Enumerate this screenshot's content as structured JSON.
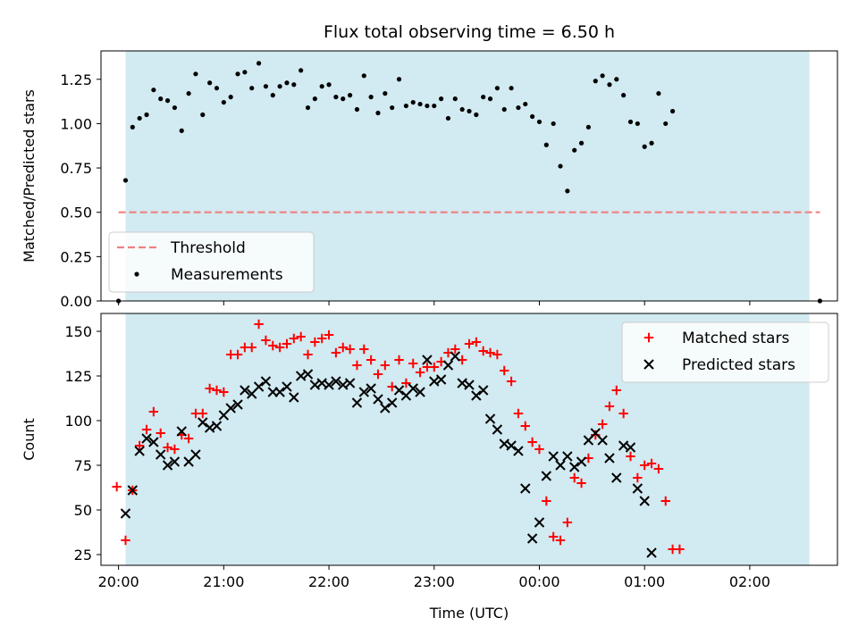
{
  "chart_data": [
    {
      "type": "scatter",
      "title": "Flux total observing time = 6.50 h",
      "xlabel": "",
      "ylabel": "Matched/Predicted stars",
      "xlim": [
        "19:50",
        "02:50"
      ],
      "ylim": [
        0,
        1.41
      ],
      "xticks": [
        "20:00",
        "21:00",
        "22:00",
        "23:00",
        "00:00",
        "01:00",
        "02:00"
      ],
      "yticks": [
        "0.00",
        "0.25",
        "0.50",
        "0.75",
        "1.00",
        "1.25"
      ],
      "shaded_interval": [
        "20:04",
        "02:34"
      ],
      "shaded_color": "#add8e6",
      "legend_position": "lower left",
      "threshold": {
        "name": "Threshold",
        "y": 0.5,
        "x": [
          "20:00",
          "02:40"
        ],
        "color": "#f08080",
        "style": "dashed"
      },
      "series": [
        {
          "name": "Measurements",
          "color": "#000000",
          "marker": "dot",
          "points": [
            [
              "20:00",
              0.0
            ],
            [
              "20:04",
              0.68
            ],
            [
              "20:08",
              0.98
            ],
            [
              "20:12",
              1.03
            ],
            [
              "20:16",
              1.05
            ],
            [
              "20:20",
              1.19
            ],
            [
              "20:24",
              1.14
            ],
            [
              "20:28",
              1.13
            ],
            [
              "20:32",
              1.09
            ],
            [
              "20:36",
              0.96
            ],
            [
              "20:40",
              1.17
            ],
            [
              "20:44",
              1.28
            ],
            [
              "20:48",
              1.05
            ],
            [
              "20:52",
              1.23
            ],
            [
              "20:56",
              1.2
            ],
            [
              "21:00",
              1.12
            ],
            [
              "21:04",
              1.15
            ],
            [
              "21:08",
              1.28
            ],
            [
              "21:12",
              1.29
            ],
            [
              "21:16",
              1.2
            ],
            [
              "21:20",
              1.34
            ],
            [
              "21:24",
              1.21
            ],
            [
              "21:28",
              1.16
            ],
            [
              "21:32",
              1.21
            ],
            [
              "21:36",
              1.23
            ],
            [
              "21:40",
              1.22
            ],
            [
              "21:44",
              1.3
            ],
            [
              "21:48",
              1.09
            ],
            [
              "21:52",
              1.14
            ],
            [
              "21:56",
              1.21
            ],
            [
              "22:00",
              1.22
            ],
            [
              "22:04",
              1.15
            ],
            [
              "22:08",
              1.14
            ],
            [
              "22:12",
              1.16
            ],
            [
              "22:16",
              1.08
            ],
            [
              "22:20",
              1.27
            ],
            [
              "22:24",
              1.15
            ],
            [
              "22:28",
              1.06
            ],
            [
              "22:32",
              1.17
            ],
            [
              "22:36",
              1.09
            ],
            [
              "22:40",
              1.25
            ],
            [
              "22:44",
              1.1
            ],
            [
              "22:48",
              1.12
            ],
            [
              "22:52",
              1.11
            ],
            [
              "22:56",
              1.1
            ],
            [
              "23:00",
              1.1
            ],
            [
              "23:04",
              1.14
            ],
            [
              "23:08",
              1.03
            ],
            [
              "23:12",
              1.14
            ],
            [
              "23:16",
              1.08
            ],
            [
              "23:20",
              1.07
            ],
            [
              "23:24",
              1.05
            ],
            [
              "23:28",
              1.15
            ],
            [
              "23:32",
              1.14
            ],
            [
              "23:36",
              1.2
            ],
            [
              "23:40",
              1.08
            ],
            [
              "23:44",
              1.2
            ],
            [
              "23:48",
              1.09
            ],
            [
              "23:52",
              1.11
            ],
            [
              "23:56",
              1.04
            ],
            [
              "00:00",
              1.01
            ],
            [
              "00:04",
              0.88
            ],
            [
              "00:08",
              1.0
            ],
            [
              "00:12",
              0.76
            ],
            [
              "00:16",
              0.62
            ],
            [
              "00:20",
              0.85
            ],
            [
              "00:24",
              0.89
            ],
            [
              "00:28",
              0.98
            ],
            [
              "00:32",
              1.24
            ],
            [
              "00:36",
              1.27
            ],
            [
              "00:40",
              1.22
            ],
            [
              "00:44",
              1.25
            ],
            [
              "00:48",
              1.16
            ],
            [
              "00:52",
              1.01
            ],
            [
              "00:56",
              1.0
            ],
            [
              "01:00",
              0.87
            ],
            [
              "01:04",
              0.89
            ],
            [
              "01:08",
              1.17
            ],
            [
              "01:12",
              1.0
            ],
            [
              "01:16",
              1.07
            ],
            [
              "02:40",
              0.0
            ]
          ]
        }
      ]
    },
    {
      "type": "scatter",
      "title": "",
      "xlabel": "Time (UTC)",
      "ylabel": "Count",
      "xlim": [
        "19:50",
        "02:50"
      ],
      "ylim": [
        19,
        160
      ],
      "xticks": [
        "20:00",
        "21:00",
        "22:00",
        "23:00",
        "00:00",
        "01:00",
        "02:00"
      ],
      "yticks": [
        "25",
        "50",
        "75",
        "100",
        "125",
        "150"
      ],
      "shaded_interval": [
        "20:04",
        "02:34"
      ],
      "shaded_color": "#add8e6",
      "legend_position": "upper right",
      "series": [
        {
          "name": "Matched stars",
          "color": "#ff0000",
          "marker": "plus",
          "points": [
            [
              "19:59",
              63
            ],
            [
              "20:04",
              33
            ],
            [
              "20:08",
              61
            ],
            [
              "20:12",
              86
            ],
            [
              "20:16",
              95
            ],
            [
              "20:20",
              105
            ],
            [
              "20:24",
              93
            ],
            [
              "20:28",
              85
            ],
            [
              "20:32",
              84
            ],
            [
              "20:36",
              92
            ],
            [
              "20:40",
              90
            ],
            [
              "20:44",
              104
            ],
            [
              "20:48",
              104
            ],
            [
              "20:52",
              118
            ],
            [
              "20:56",
              117
            ],
            [
              "21:00",
              116
            ],
            [
              "21:04",
              137
            ],
            [
              "21:08",
              137
            ],
            [
              "21:12",
              141
            ],
            [
              "21:16",
              141
            ],
            [
              "21:20",
              154
            ],
            [
              "21:24",
              145
            ],
            [
              "21:28",
              142
            ],
            [
              "21:32",
              141
            ],
            [
              "21:36",
              143
            ],
            [
              "21:40",
              146
            ],
            [
              "21:44",
              147
            ],
            [
              "21:48",
              137
            ],
            [
              "21:52",
              144
            ],
            [
              "21:56",
              146
            ],
            [
              "22:00",
              148
            ],
            [
              "22:04",
              138
            ],
            [
              "22:08",
              141
            ],
            [
              "22:12",
              140
            ],
            [
              "22:16",
              131
            ],
            [
              "22:20",
              140
            ],
            [
              "22:24",
              134
            ],
            [
              "22:28",
              126
            ],
            [
              "22:32",
              131
            ],
            [
              "22:36",
              119
            ],
            [
              "22:40",
              134
            ],
            [
              "22:44",
              121
            ],
            [
              "22:48",
              132
            ],
            [
              "22:52",
              127
            ],
            [
              "22:56",
              130
            ],
            [
              "23:00",
              130
            ],
            [
              "23:04",
              133
            ],
            [
              "23:08",
              138
            ],
            [
              "23:12",
              140
            ],
            [
              "23:16",
              134
            ],
            [
              "23:20",
              143
            ],
            [
              "23:24",
              144
            ],
            [
              "23:28",
              139
            ],
            [
              "23:32",
              138
            ],
            [
              "23:36",
              137
            ],
            [
              "23:40",
              128
            ],
            [
              "23:44",
              122
            ],
            [
              "23:48",
              104
            ],
            [
              "23:52",
              97
            ],
            [
              "23:56",
              88
            ],
            [
              "00:00",
              84
            ],
            [
              "00:04",
              55
            ],
            [
              "00:08",
              35
            ],
            [
              "00:12",
              33
            ],
            [
              "00:16",
              43
            ],
            [
              "00:20",
              68
            ],
            [
              "00:24",
              65
            ],
            [
              "00:28",
              79
            ],
            [
              "00:32",
              92
            ],
            [
              "00:36",
              98
            ],
            [
              "00:40",
              108
            ],
            [
              "00:44",
              117
            ],
            [
              "00:48",
              104
            ],
            [
              "00:52",
              80
            ],
            [
              "00:56",
              68
            ],
            [
              "01:00",
              75
            ],
            [
              "01:04",
              76
            ],
            [
              "01:08",
              73
            ],
            [
              "01:12",
              55
            ],
            [
              "01:16",
              28
            ],
            [
              "01:20",
              28
            ]
          ]
        },
        {
          "name": "Predicted stars",
          "color": "#000000",
          "marker": "x",
          "points": [
            [
              "20:04",
              48
            ],
            [
              "20:08",
              61
            ],
            [
              "20:12",
              83
            ],
            [
              "20:16",
              90
            ],
            [
              "20:20",
              88
            ],
            [
              "20:24",
              81
            ],
            [
              "20:28",
              75
            ],
            [
              "20:32",
              77
            ],
            [
              "20:36",
              94
            ],
            [
              "20:40",
              77
            ],
            [
              "20:44",
              81
            ],
            [
              "20:48",
              99
            ],
            [
              "20:52",
              96
            ],
            [
              "20:56",
              97
            ],
            [
              "21:00",
              103
            ],
            [
              "21:04",
              107
            ],
            [
              "21:08",
              109
            ],
            [
              "21:12",
              117
            ],
            [
              "21:16",
              115
            ],
            [
              "21:20",
              119
            ],
            [
              "21:24",
              122
            ],
            [
              "21:28",
              116
            ],
            [
              "21:32",
              116
            ],
            [
              "21:36",
              119
            ],
            [
              "21:40",
              113
            ],
            [
              "21:44",
              125
            ],
            [
              "21:48",
              126
            ],
            [
              "21:52",
              120
            ],
            [
              "21:56",
              121
            ],
            [
              "22:00",
              120
            ],
            [
              "22:04",
              122
            ],
            [
              "22:08",
              120
            ],
            [
              "22:12",
              121
            ],
            [
              "22:16",
              110
            ],
            [
              "22:20",
              116
            ],
            [
              "22:24",
              118
            ],
            [
              "22:28",
              112
            ],
            [
              "22:32",
              107
            ],
            [
              "22:36",
              110
            ],
            [
              "22:40",
              117
            ],
            [
              "22:44",
              114
            ],
            [
              "22:48",
              118
            ],
            [
              "22:52",
              116
            ],
            [
              "22:56",
              134
            ],
            [
              "23:00",
              122
            ],
            [
              "23:04",
              123
            ],
            [
              "23:08",
              131
            ],
            [
              "23:12",
              136
            ],
            [
              "23:16",
              121
            ],
            [
              "23:20",
              120
            ],
            [
              "23:24",
              114
            ],
            [
              "23:28",
              117
            ],
            [
              "23:32",
              101
            ],
            [
              "23:36",
              95
            ],
            [
              "23:40",
              87
            ],
            [
              "23:44",
              86
            ],
            [
              "23:48",
              83
            ],
            [
              "23:52",
              62
            ],
            [
              "23:56",
              34
            ],
            [
              "00:00",
              43
            ],
            [
              "00:04",
              69
            ],
            [
              "00:08",
              80
            ],
            [
              "00:12",
              75
            ],
            [
              "00:16",
              80
            ],
            [
              "00:20",
              74
            ],
            [
              "00:24",
              77
            ],
            [
              "00:28",
              89
            ],
            [
              "00:32",
              93
            ],
            [
              "00:36",
              89
            ],
            [
              "00:40",
              79
            ],
            [
              "00:44",
              68
            ],
            [
              "00:48",
              86
            ],
            [
              "00:52",
              85
            ],
            [
              "00:56",
              62
            ],
            [
              "01:00",
              55
            ],
            [
              "01:04",
              26
            ]
          ]
        }
      ]
    }
  ]
}
